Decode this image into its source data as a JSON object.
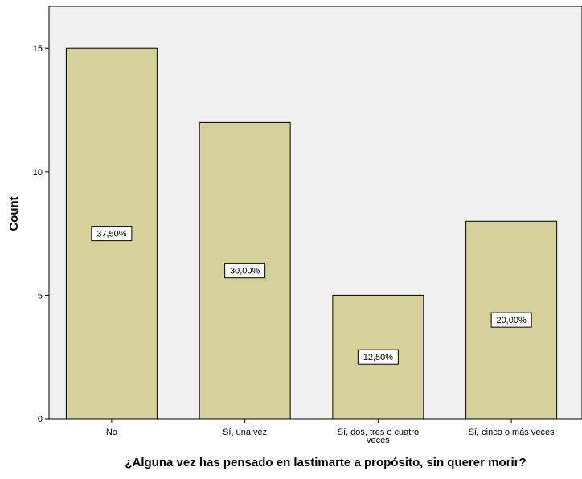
{
  "chart_data": {
    "type": "bar",
    "title": "",
    "xlabel": "¿Alguna vez has pensado en lastimarte a propósito, sin querer morir?",
    "ylabel": "Count",
    "ylim": [
      0,
      16.7
    ],
    "yticks": [
      0,
      5,
      10,
      15
    ],
    "grid": false,
    "categories": [
      [
        "No"
      ],
      [
        "Sí, una vez"
      ],
      [
        "Sí, dos, tres o cuatro",
        "veces"
      ],
      [
        "Sí, cinco o más veces"
      ]
    ],
    "values": [
      15,
      12,
      5,
      8
    ],
    "data_labels": [
      "37,50%",
      "30,00%",
      "12,50%",
      "20,00%"
    ],
    "colors": {
      "bar_fill": "#d6d19c",
      "bar_stroke": "#000000",
      "plot_background": "#f0f0f0",
      "axis": "#000000"
    }
  }
}
